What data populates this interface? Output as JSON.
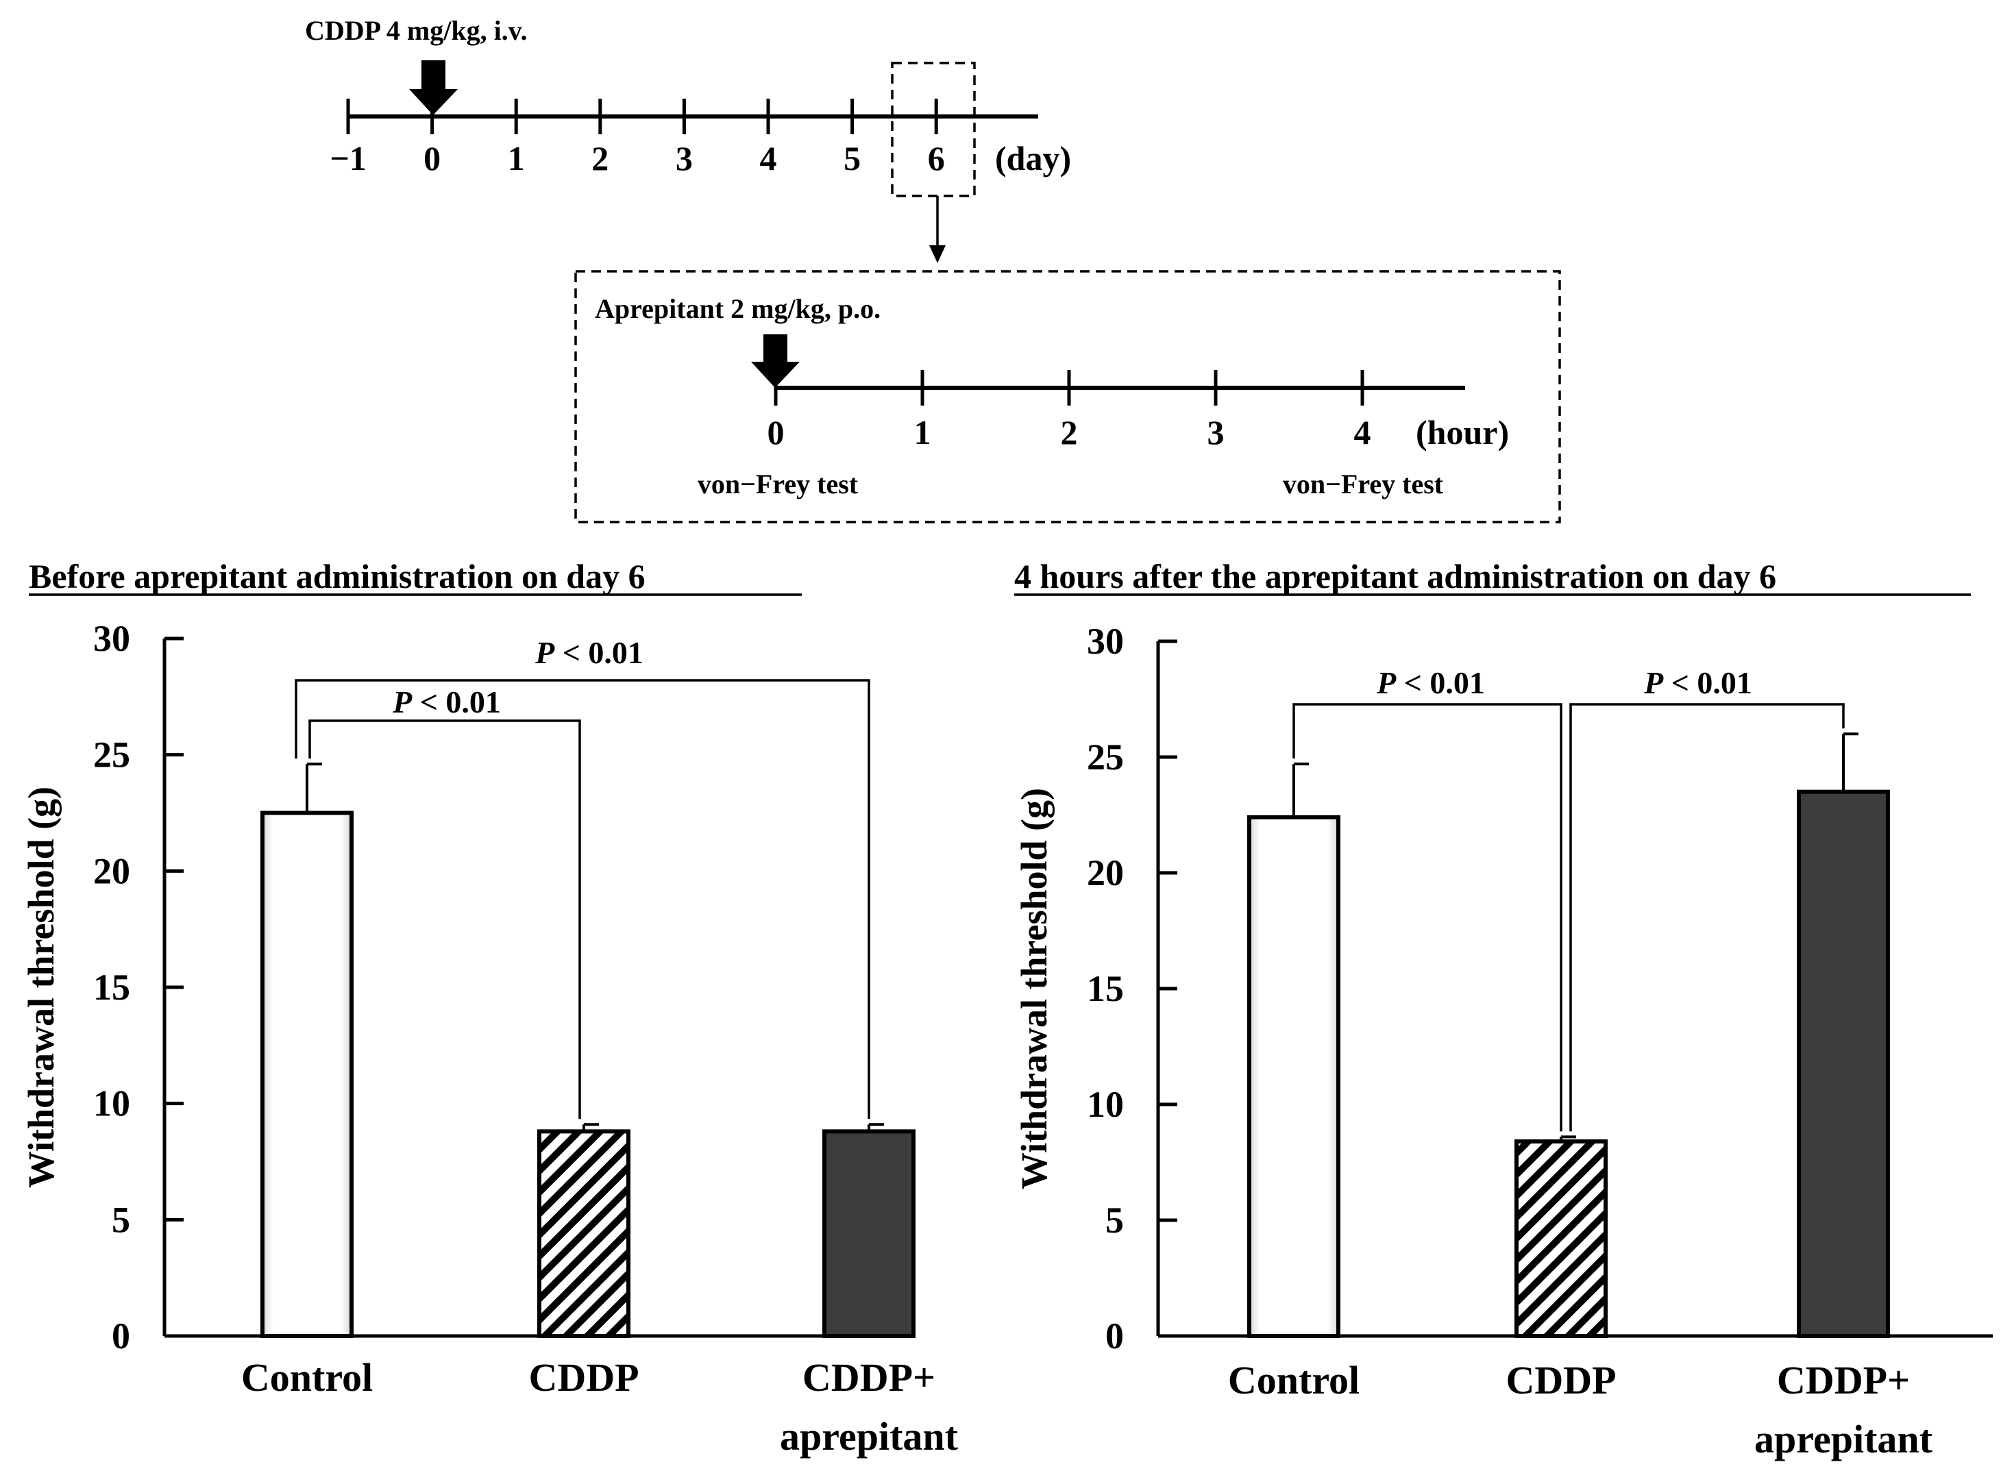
{
  "timeline": {
    "cddp_label": "CDDP 4 mg/kg, i.v.",
    "day_ticks": [
      "−1",
      "0",
      "1",
      "2",
      "3",
      "4",
      "5",
      "6"
    ],
    "day_unit": "(day)",
    "aprepitant_label": "Aprepitant 2 mg/kg, p.o.",
    "hour_ticks": [
      "0",
      "1",
      "2",
      "3",
      "4"
    ],
    "hour_unit": "(hour)",
    "test_label_start": "von−Frey test",
    "test_label_end": "von−Frey test"
  },
  "colors": {
    "control": "#ffffff",
    "cddp_hatch": "#000000",
    "aprepitant": "#3c3c3c",
    "axis": "#000000"
  },
  "chart_data": [
    {
      "type": "bar",
      "title": "Before aprepitant administration on day 6",
      "ylabel": "Withdrawal  threshold (g)",
      "xlabel": "",
      "ylim": [
        0,
        30
      ],
      "yticks": [
        "0",
        "5",
        "10",
        "15",
        "20",
        "25",
        "30"
      ],
      "categories": [
        "Control",
        "CDDP",
        "CDDP+\naprepitant"
      ],
      "values": [
        22.5,
        8.8,
        8.8
      ],
      "errors": [
        2.1,
        0.3,
        0.3
      ],
      "fills": [
        "white",
        "hatched",
        "dark"
      ],
      "significance": [
        {
          "from": 0,
          "to": 2,
          "label_p": "P",
          "label_rest": " < 0.01"
        },
        {
          "from": 0,
          "to": 1,
          "label_p": "P",
          "label_rest": " < 0.01"
        }
      ]
    },
    {
      "type": "bar",
      "title": "4 hours after the aprepitant administration on day 6",
      "ylabel": "Withdrawal  threshold (g)",
      "xlabel": "",
      "ylim": [
        0,
        30
      ],
      "yticks": [
        "0",
        "5",
        "10",
        "15",
        "20",
        "25",
        "30"
      ],
      "categories": [
        "Control",
        "CDDP",
        "CDDP+\naprepitant"
      ],
      "values": [
        22.4,
        8.4,
        23.5
      ],
      "errors": [
        2.3,
        0.2,
        2.5
      ],
      "fills": [
        "white",
        "hatched",
        "dark"
      ],
      "significance": [
        {
          "from": 0,
          "to": 1,
          "label_p": "P",
          "label_rest": " < 0.01"
        },
        {
          "from": 1,
          "to": 2,
          "label_p": "P",
          "label_rest": " < 0.01"
        }
      ]
    }
  ]
}
